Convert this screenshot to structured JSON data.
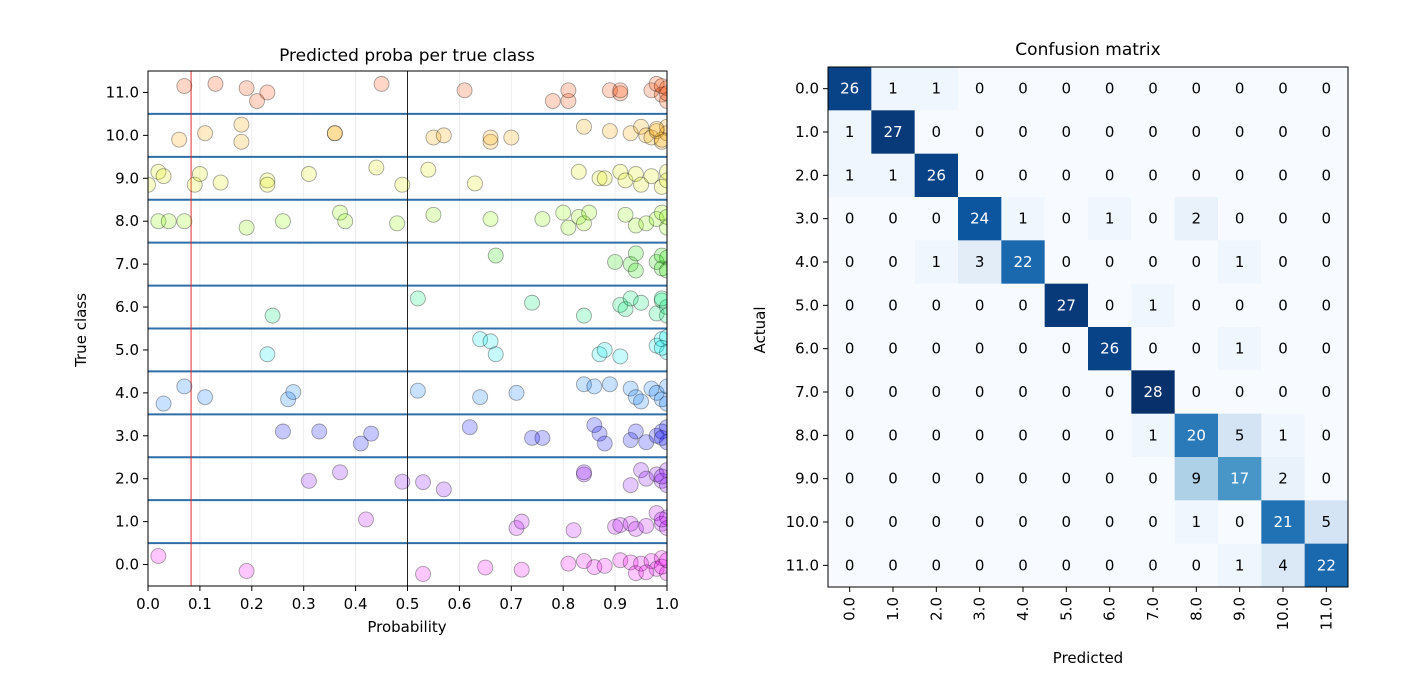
{
  "chart_data": [
    {
      "type": "scatter",
      "title": "Predicted proba per true class",
      "xlabel": "Probability",
      "ylabel": "True class",
      "xlim": [
        0.0,
        1.0
      ],
      "ylim": [
        -0.5,
        11.5
      ],
      "x_ticks": [
        "0.0",
        "0.1",
        "0.2",
        "0.3",
        "0.4",
        "0.5",
        "0.6",
        "0.7",
        "0.8",
        "0.9",
        "1.0"
      ],
      "y_ticks": [
        "0.0",
        "1.0",
        "2.0",
        "3.0",
        "4.0",
        "5.0",
        "6.0",
        "7.0",
        "8.0",
        "9.0",
        "10.0",
        "11.0"
      ],
      "threshold_red_x": 0.083,
      "threshold_black_x": 0.5,
      "class_colors": [
        "#ff00ff",
        "#bb00ff",
        "#8800ff",
        "#0000ff",
        "#0077ff",
        "#00eeee",
        "#00ee77",
        "#22dd00",
        "#88ff00",
        "#ddee00",
        "#ffaa00",
        "#ff4400"
      ],
      "series": [
        {
          "cls": 0,
          "points": [
            [
              0.02,
              0.2
            ],
            [
              0.19,
              -0.15
            ],
            [
              0.53,
              -0.22
            ],
            [
              0.65,
              -0.07
            ],
            [
              0.72,
              -0.12
            ],
            [
              0.81,
              0.02
            ],
            [
              0.84,
              0.08
            ],
            [
              0.86,
              -0.06
            ],
            [
              0.88,
              -0.03
            ],
            [
              0.91,
              0.1
            ],
            [
              0.93,
              0.05
            ],
            [
              0.94,
              -0.2
            ],
            [
              0.95,
              0.02
            ],
            [
              0.97,
              0.08
            ],
            [
              0.98,
              -0.1
            ],
            [
              0.99,
              0.15
            ],
            [
              1.0,
              -0.2
            ],
            [
              0.99,
              -0.05
            ],
            [
              1.0,
              0.1
            ],
            [
              0.96,
              -0.18
            ]
          ]
        },
        {
          "cls": 1,
          "points": [
            [
              0.42,
              1.05
            ],
            [
              0.71,
              0.85
            ],
            [
              0.72,
              1.0
            ],
            [
              0.82,
              0.8
            ],
            [
              0.9,
              0.88
            ],
            [
              0.91,
              0.92
            ],
            [
              0.93,
              0.95
            ],
            [
              0.94,
              0.83
            ],
            [
              0.96,
              0.9
            ],
            [
              0.98,
              1.2
            ],
            [
              0.99,
              0.95
            ],
            [
              1.0,
              1.1
            ],
            [
              1.0,
              0.85
            ],
            [
              0.99,
              1.05
            ]
          ]
        },
        {
          "cls": 2,
          "points": [
            [
              0.31,
              1.95
            ],
            [
              0.37,
              2.15
            ],
            [
              0.49,
              1.93
            ],
            [
              0.53,
              1.92
            ],
            [
              0.57,
              1.75
            ],
            [
              0.84,
              2.1
            ],
            [
              0.84,
              2.15
            ],
            [
              0.93,
              1.85
            ],
            [
              0.95,
              2.2
            ],
            [
              0.96,
              2.0
            ],
            [
              0.98,
              2.1
            ],
            [
              0.99,
              1.95
            ],
            [
              1.0,
              2.2
            ],
            [
              1.0,
              1.85
            ],
            [
              0.99,
              2.05
            ]
          ]
        },
        {
          "cls": 3,
          "points": [
            [
              0.26,
              3.1
            ],
            [
              0.33,
              3.1
            ],
            [
              0.41,
              2.82
            ],
            [
              0.43,
              3.05
            ],
            [
              0.62,
              3.2
            ],
            [
              0.74,
              2.95
            ],
            [
              0.76,
              2.95
            ],
            [
              0.86,
              3.25
            ],
            [
              0.87,
              3.05
            ],
            [
              0.88,
              2.82
            ],
            [
              0.93,
              2.9
            ],
            [
              0.94,
              3.1
            ],
            [
              0.96,
              2.85
            ],
            [
              0.98,
              3.0
            ],
            [
              0.99,
              3.1
            ],
            [
              1.0,
              3.2
            ],
            [
              1.0,
              2.85
            ],
            [
              0.99,
              2.95
            ]
          ]
        },
        {
          "cls": 4,
          "points": [
            [
              0.03,
              3.75
            ],
            [
              0.07,
              4.15
            ],
            [
              0.11,
              3.9
            ],
            [
              0.27,
              3.85
            ],
            [
              0.28,
              4.02
            ],
            [
              0.52,
              4.05
            ],
            [
              0.64,
              3.9
            ],
            [
              0.71,
              4.0
            ],
            [
              0.84,
              4.2
            ],
            [
              0.86,
              4.15
            ],
            [
              0.89,
              4.2
            ],
            [
              0.93,
              4.1
            ],
            [
              0.94,
              3.9
            ],
            [
              0.95,
              3.8
            ],
            [
              0.97,
              4.1
            ],
            [
              0.98,
              4.0
            ],
            [
              0.99,
              3.85
            ],
            [
              1.0,
              4.15
            ],
            [
              1.0,
              3.75
            ]
          ]
        },
        {
          "cls": 5,
          "points": [
            [
              0.23,
              4.9
            ],
            [
              0.64,
              5.25
            ],
            [
              0.66,
              5.2
            ],
            [
              0.67,
              4.9
            ],
            [
              0.87,
              4.9
            ],
            [
              0.88,
              5.0
            ],
            [
              0.91,
              4.85
            ],
            [
              0.98,
              5.1
            ],
            [
              0.99,
              5.25
            ],
            [
              1.0,
              4.95
            ],
            [
              1.0,
              5.3
            ],
            [
              0.99,
              5.05
            ]
          ]
        },
        {
          "cls": 6,
          "points": [
            [
              0.24,
              5.8
            ],
            [
              0.52,
              6.2
            ],
            [
              0.74,
              6.1
            ],
            [
              0.84,
              5.8
            ],
            [
              0.91,
              6.05
            ],
            [
              0.92,
              5.95
            ],
            [
              0.93,
              6.2
            ],
            [
              0.95,
              6.1
            ],
            [
              0.98,
              5.85
            ],
            [
              0.99,
              6.15
            ],
            [
              1.0,
              6.0
            ],
            [
              1.0,
              5.8
            ],
            [
              0.99,
              6.2
            ]
          ]
        },
        {
          "cls": 7,
          "points": [
            [
              0.67,
              7.2
            ],
            [
              0.9,
              7.05
            ],
            [
              0.93,
              7.0
            ],
            [
              0.94,
              6.85
            ],
            [
              0.94,
              7.25
            ],
            [
              0.98,
              7.05
            ],
            [
              0.99,
              6.9
            ],
            [
              1.0,
              7.15
            ],
            [
              1.0,
              6.85
            ],
            [
              0.99,
              7.2
            ]
          ]
        },
        {
          "cls": 8,
          "points": [
            [
              0.02,
              8.0
            ],
            [
              0.04,
              8.0
            ],
            [
              0.07,
              8.0
            ],
            [
              0.19,
              7.85
            ],
            [
              0.26,
              8.0
            ],
            [
              0.37,
              8.2
            ],
            [
              0.38,
              8.0
            ],
            [
              0.48,
              7.95
            ],
            [
              0.55,
              8.15
            ],
            [
              0.66,
              8.05
            ],
            [
              0.76,
              8.05
            ],
            [
              0.8,
              8.2
            ],
            [
              0.81,
              7.85
            ],
            [
              0.83,
              8.1
            ],
            [
              0.84,
              7.95
            ],
            [
              0.85,
              8.2
            ],
            [
              0.92,
              8.15
            ],
            [
              0.94,
              7.9
            ],
            [
              0.96,
              7.95
            ],
            [
              0.98,
              8.05
            ],
            [
              0.99,
              8.2
            ],
            [
              1.0,
              7.85
            ],
            [
              1.0,
              8.1
            ]
          ]
        },
        {
          "cls": 9,
          "points": [
            [
              0.0,
              8.85
            ],
            [
              0.02,
              9.15
            ],
            [
              0.03,
              9.05
            ],
            [
              0.09,
              8.85
            ],
            [
              0.1,
              9.1
            ],
            [
              0.14,
              8.9
            ],
            [
              0.23,
              8.95
            ],
            [
              0.23,
              8.85
            ],
            [
              0.31,
              9.1
            ],
            [
              0.44,
              9.25
            ],
            [
              0.49,
              8.85
            ],
            [
              0.54,
              9.2
            ],
            [
              0.63,
              8.88
            ],
            [
              0.83,
              9.15
            ],
            [
              0.87,
              9.0
            ],
            [
              0.88,
              9.0
            ],
            [
              0.91,
              9.15
            ],
            [
              0.92,
              8.95
            ],
            [
              0.94,
              9.1
            ],
            [
              0.95,
              8.85
            ],
            [
              0.97,
              9.05
            ],
            [
              0.99,
              8.8
            ],
            [
              1.0,
              9.15
            ],
            [
              1.0,
              8.95
            ]
          ]
        },
        {
          "cls": 10,
          "points": [
            [
              0.06,
              9.9
            ],
            [
              0.11,
              10.05
            ],
            [
              0.18,
              10.25
            ],
            [
              0.18,
              9.85
            ],
            [
              0.36,
              10.05
            ],
            [
              0.36,
              10.05
            ],
            [
              0.55,
              9.95
            ],
            [
              0.57,
              10.0
            ],
            [
              0.66,
              9.85
            ],
            [
              0.66,
              9.95
            ],
            [
              0.7,
              9.95
            ],
            [
              0.84,
              10.2
            ],
            [
              0.89,
              10.1
            ],
            [
              0.93,
              10.05
            ],
            [
              0.95,
              10.2
            ],
            [
              0.96,
              10.0
            ],
            [
              0.97,
              9.95
            ],
            [
              0.98,
              10.1
            ],
            [
              0.99,
              9.85
            ],
            [
              1.0,
              10.05
            ],
            [
              1.0,
              10.2
            ],
            [
              0.99,
              9.9
            ],
            [
              0.98,
              10.15
            ]
          ]
        },
        {
          "cls": 11,
          "points": [
            [
              0.07,
              11.15
            ],
            [
              0.13,
              11.2
            ],
            [
              0.19,
              11.1
            ],
            [
              0.21,
              10.8
            ],
            [
              0.23,
              11.0
            ],
            [
              0.45,
              11.2
            ],
            [
              0.61,
              11.05
            ],
            [
              0.78,
              10.8
            ],
            [
              0.81,
              10.8
            ],
            [
              0.81,
              11.05
            ],
            [
              0.89,
              11.05
            ],
            [
              0.91,
              10.98
            ],
            [
              0.91,
              11.05
            ],
            [
              0.97,
              11.05
            ],
            [
              0.98,
              11.2
            ],
            [
              0.99,
              10.95
            ],
            [
              1.0,
              11.1
            ],
            [
              1.0,
              10.8
            ],
            [
              0.99,
              11.15
            ],
            [
              1.0,
              10.98
            ]
          ]
        }
      ]
    },
    {
      "type": "heatmap",
      "title": "Confusion matrix",
      "xlabel": "Predicted",
      "ylabel": "Actual",
      "labels": [
        "0.0",
        "1.0",
        "2.0",
        "3.0",
        "4.0",
        "5.0",
        "6.0",
        "7.0",
        "8.0",
        "9.0",
        "10.0",
        "11.0"
      ],
      "colormap": "Blues",
      "matrix": [
        [
          26,
          1,
          1,
          0,
          0,
          0,
          0,
          0,
          0,
          0,
          0,
          0
        ],
        [
          1,
          27,
          0,
          0,
          0,
          0,
          0,
          0,
          0,
          0,
          0,
          0
        ],
        [
          1,
          1,
          26,
          0,
          0,
          0,
          0,
          0,
          0,
          0,
          0,
          0
        ],
        [
          0,
          0,
          0,
          24,
          1,
          0,
          1,
          0,
          2,
          0,
          0,
          0
        ],
        [
          0,
          0,
          1,
          3,
          22,
          0,
          0,
          0,
          0,
          1,
          0,
          0
        ],
        [
          0,
          0,
          0,
          0,
          0,
          27,
          0,
          1,
          0,
          0,
          0,
          0
        ],
        [
          0,
          0,
          0,
          0,
          0,
          0,
          26,
          0,
          0,
          1,
          0,
          0
        ],
        [
          0,
          0,
          0,
          0,
          0,
          0,
          0,
          28,
          0,
          0,
          0,
          0
        ],
        [
          0,
          0,
          0,
          0,
          0,
          0,
          0,
          1,
          20,
          5,
          1,
          0
        ],
        [
          0,
          0,
          0,
          0,
          0,
          0,
          0,
          0,
          9,
          17,
          2,
          0
        ],
        [
          0,
          0,
          0,
          0,
          0,
          0,
          0,
          0,
          1,
          0,
          21,
          5
        ],
        [
          0,
          0,
          0,
          0,
          0,
          0,
          0,
          0,
          0,
          1,
          4,
          22
        ]
      ]
    }
  ]
}
